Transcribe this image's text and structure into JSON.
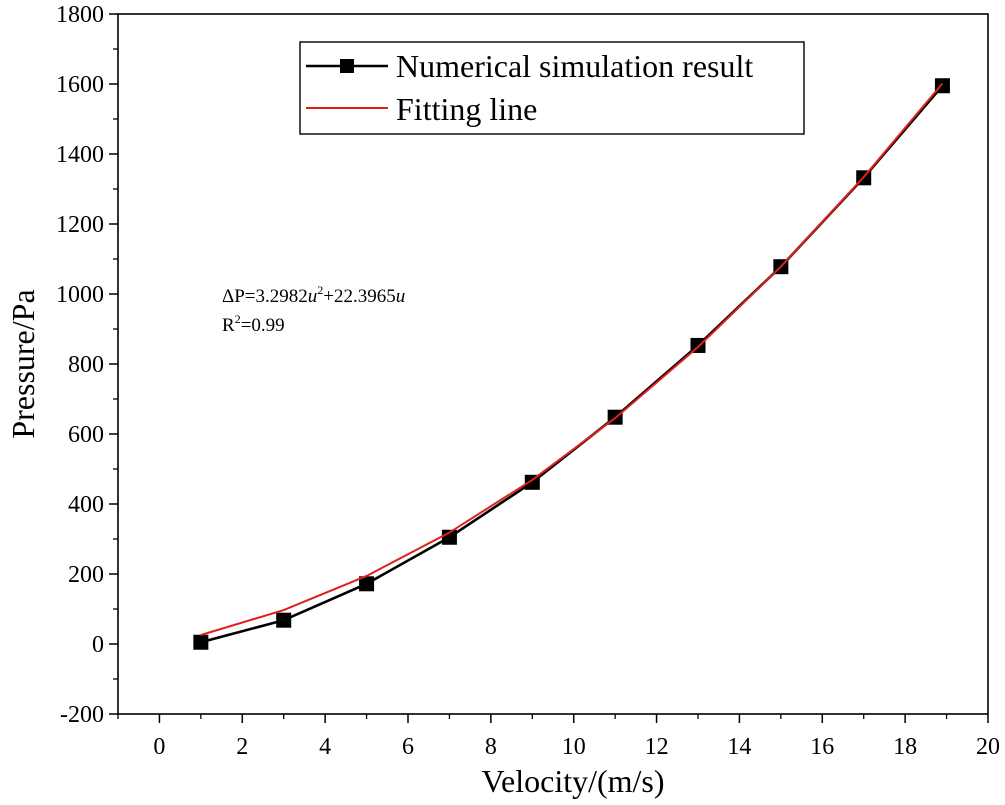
{
  "chart_data": {
    "type": "line",
    "xlabel": "Velocity/(m/s)",
    "ylabel": "Pressure/Pa",
    "xlim": [
      -1,
      20
    ],
    "ylim": [
      -200,
      1800
    ],
    "x_ticks": [
      0,
      2,
      4,
      6,
      8,
      10,
      12,
      14,
      16,
      18,
      20
    ],
    "y_ticks": [
      -200,
      0,
      200,
      400,
      600,
      800,
      1000,
      1200,
      1400,
      1600,
      1800
    ],
    "grid": false,
    "legend_position": "top-right",
    "series": [
      {
        "name": "Numerical simulation result",
        "color": "#000000",
        "marker": "square",
        "x": [
          1,
          3,
          5,
          7,
          9,
          11,
          13,
          15,
          17,
          18.9
        ],
        "y": [
          5,
          68,
          172,
          305,
          462,
          648,
          853,
          1078,
          1332,
          1595
        ]
      },
      {
        "name": "Fitting line",
        "color": "#e0201b",
        "marker": "none",
        "x": [
          1,
          3,
          5,
          7,
          9,
          11,
          13,
          15,
          17,
          18.9
        ],
        "y": [
          25.7,
          96.9,
          194.4,
          318.4,
          468.7,
          645.4,
          848.6,
          1078.1,
          1334.1,
          1601.5
        ]
      }
    ],
    "annotation": {
      "equation_prefix": "ΔP=3.2982",
      "equation_var1": "u",
      "equation_sup": "2",
      "equation_middle": "+22.3965",
      "equation_var2": "u",
      "r2_prefix": "R",
      "r2_sup": "2",
      "r2_value": "=0.99"
    }
  }
}
